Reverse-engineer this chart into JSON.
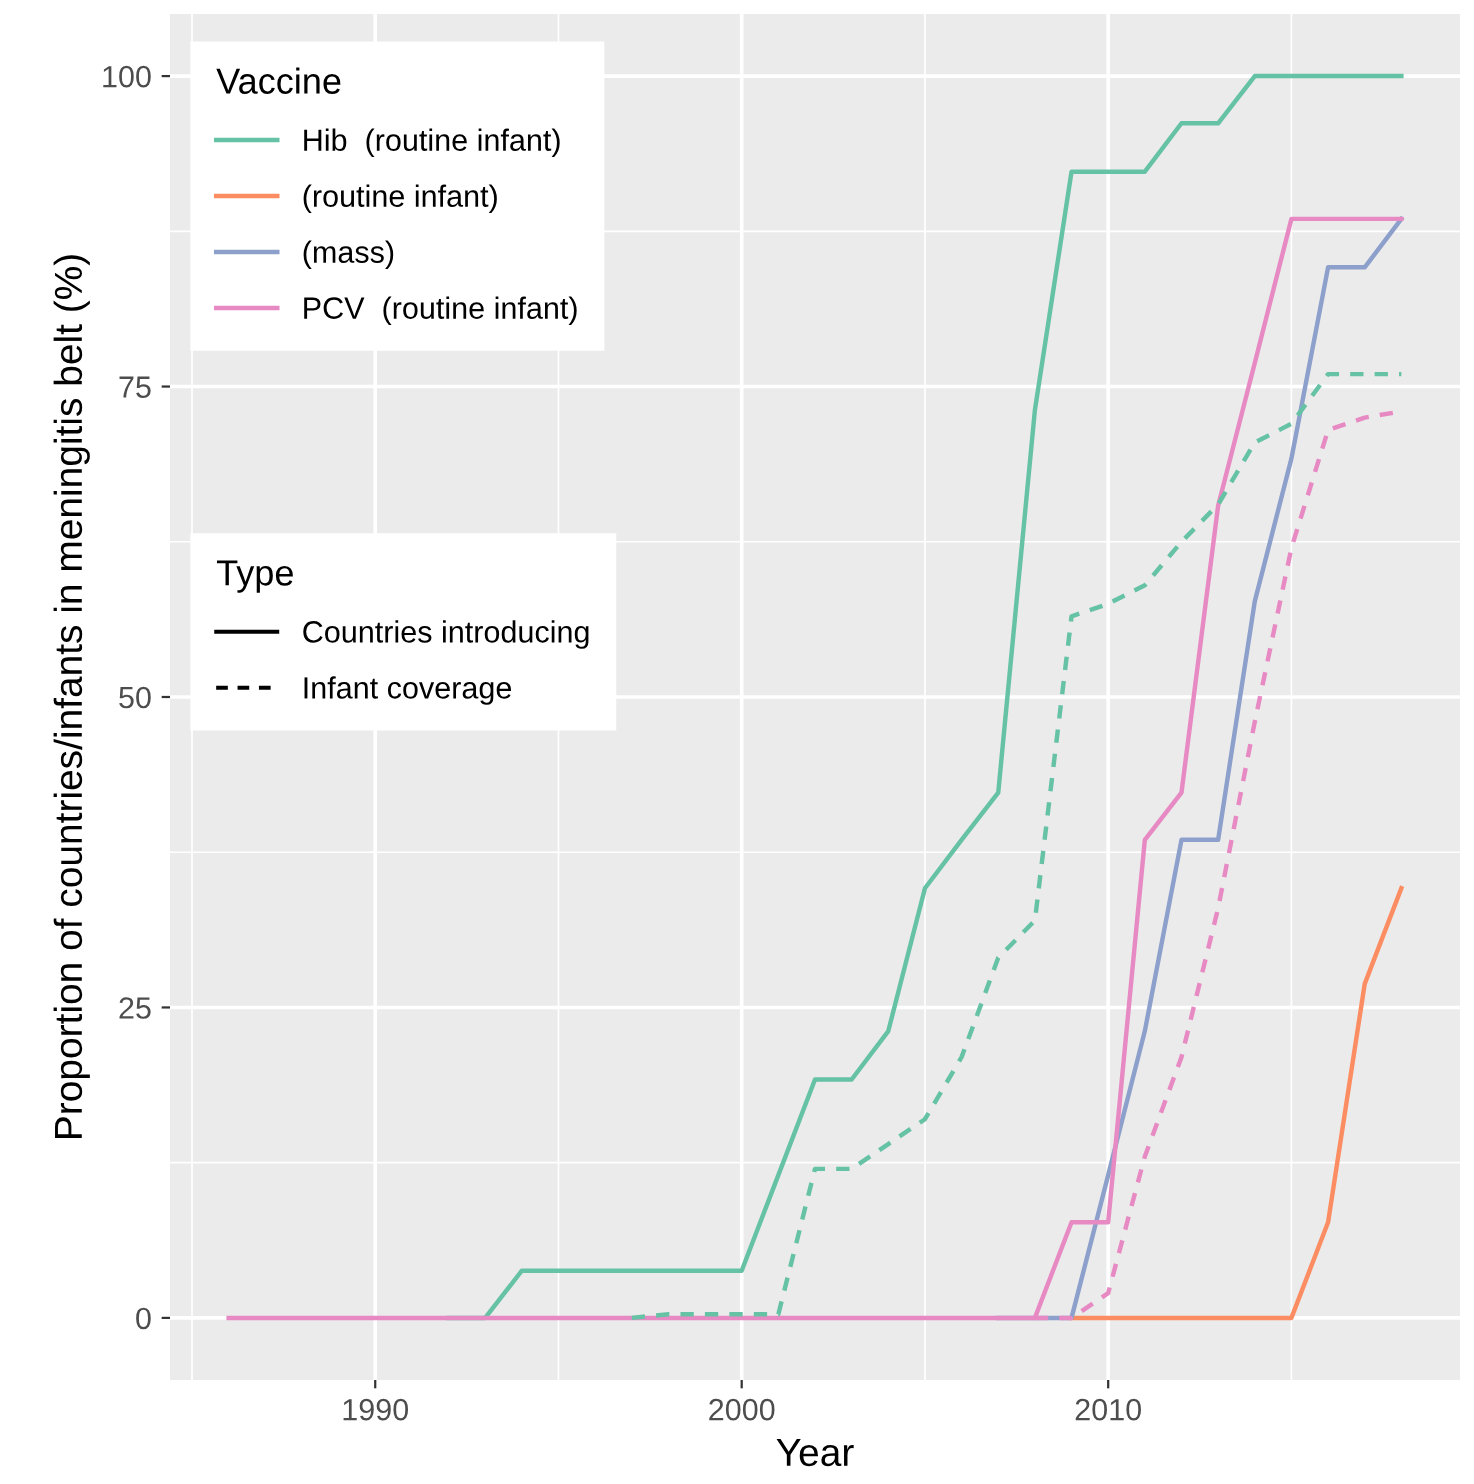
{
  "chart_data": {
    "type": "line",
    "xlabel": "Year",
    "ylabel": "Proportion of countries/infants in meningitis belt (%)",
    "legend_title": [
      "Vaccine",
      "Type"
    ],
    "annotations": [
      "Countries introducing",
      "Infant coverage"
    ],
    "x": [
      1986,
      1987,
      1988,
      1989,
      1990,
      1991,
      1992,
      1993,
      1994,
      1995,
      1996,
      1997,
      1998,
      1999,
      2000,
      2001,
      2002,
      2003,
      2004,
      2005,
      2006,
      2007,
      2008,
      2009,
      2010,
      2011,
      2012,
      2013,
      2014,
      2015,
      2016,
      2017,
      2018
    ],
    "series": [
      {
        "name": "Hib  (routine infant)",
        "color": "#66c2a5",
        "line_style": "solid",
        "values": [
          null,
          null,
          null,
          null,
          null,
          null,
          0,
          0,
          3.8,
          3.8,
          3.8,
          3.8,
          3.8,
          3.8,
          3.8,
          11.5,
          19.2,
          19.2,
          23.1,
          34.6,
          38.5,
          42.3,
          73.1,
          92.3,
          92.3,
          92.3,
          96.2,
          96.2,
          100,
          100,
          100,
          100,
          100
        ]
      },
      {
        "name": "(routine infant)",
        "color": "#fc8d62",
        "line_style": "solid",
        "values": [
          null,
          null,
          null,
          null,
          null,
          null,
          null,
          null,
          null,
          null,
          null,
          null,
          null,
          null,
          null,
          null,
          null,
          null,
          null,
          null,
          null,
          null,
          null,
          0,
          0,
          0,
          0,
          0,
          0,
          0,
          7.7,
          26.9,
          34.6
        ]
      },
      {
        "name": "(mass)",
        "color": "#8da0cb",
        "line_style": "solid",
        "values": [
          null,
          null,
          null,
          null,
          null,
          null,
          null,
          null,
          null,
          null,
          null,
          null,
          null,
          null,
          null,
          null,
          null,
          null,
          null,
          null,
          null,
          0,
          0,
          0,
          11.5,
          23.1,
          38.5,
          38.5,
          57.7,
          69.2,
          84.6,
          84.6,
          88.5
        ]
      },
      {
        "name": "PCV  (routine infant)",
        "color": "#e78ac3",
        "line_style": "solid",
        "values": [
          0,
          0,
          0,
          0,
          0,
          0,
          0,
          0,
          0,
          0,
          0,
          0,
          0,
          0,
          0,
          0,
          0,
          0,
          0,
          0,
          0,
          0,
          0,
          7.7,
          7.7,
          38.5,
          42.3,
          65.4,
          76.9,
          88.5,
          88.5,
          88.5,
          88.5
        ]
      },
      {
        "color": "#66c2a5",
        "line_style": "dashed",
        "values": [
          null,
          null,
          null,
          null,
          null,
          null,
          null,
          null,
          null,
          null,
          null,
          0,
          0.3,
          0.3,
          0.3,
          0.3,
          12,
          12,
          14,
          16,
          21,
          29,
          32,
          56.5,
          57.5,
          59,
          62.5,
          65.5,
          70.5,
          72,
          76,
          76,
          76
        ]
      },
      {
        "color": "#e78ac3",
        "line_style": "dashed",
        "values": [
          null,
          null,
          null,
          null,
          null,
          null,
          null,
          null,
          null,
          null,
          null,
          null,
          null,
          null,
          null,
          null,
          null,
          null,
          null,
          null,
          null,
          null,
          0,
          0,
          2,
          13,
          21,
          33,
          48,
          62,
          71.5,
          72.5,
          73
        ]
      }
    ],
    "xlim": [
      1984.4,
      2019.6
    ],
    "ylim": [
      -5,
      105
    ],
    "xticks": [
      1990,
      2000,
      2010
    ],
    "yticks": [
      0,
      25,
      50,
      75,
      100
    ],
    "grid": true,
    "legend": "top left"
  }
}
